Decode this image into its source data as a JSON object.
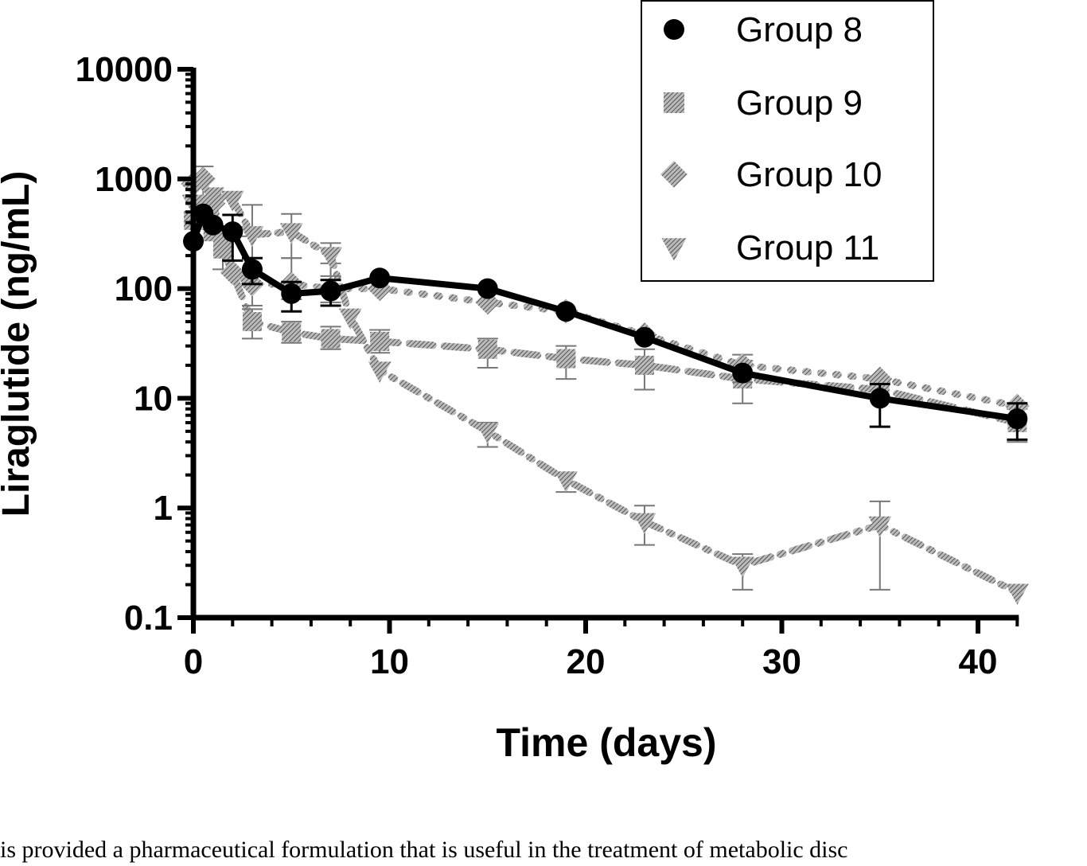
{
  "chart_data": {
    "type": "line",
    "xlabel": "Time (days)",
    "ylabel": "Liraglutide (ng/mL)",
    "xlim": [
      0,
      42
    ],
    "ylim": [
      0.1,
      10000
    ],
    "y_scale": "log",
    "x_ticks": [
      0,
      10,
      20,
      30,
      40
    ],
    "x_tick_labels": [
      "0",
      "10",
      "20",
      "30",
      "40"
    ],
    "y_ticks": [
      0.1,
      1,
      10,
      100,
      1000,
      10000
    ],
    "y_tick_labels": [
      "0.1",
      "1",
      "10",
      "100",
      "1000",
      "10000"
    ],
    "legend_position": "top-right",
    "series": [
      {
        "name": "Group 8",
        "marker": "circle",
        "line_style": "solid",
        "color": "#000000",
        "x": [
          0,
          0.5,
          1,
          2,
          3,
          5,
          7,
          9.5,
          15,
          19,
          23,
          28,
          35,
          42
        ],
        "y": [
          270,
          480,
          380,
          330,
          150,
          90,
          95,
          125,
          100,
          62,
          36,
          17,
          10,
          6.5
        ],
        "err_hi": [
          null,
          null,
          null,
          470,
          190,
          115,
          120,
          null,
          null,
          null,
          null,
          null,
          13.5,
          9
        ],
        "err_lo": [
          null,
          null,
          null,
          180,
          110,
          62,
          70,
          null,
          null,
          null,
          null,
          null,
          5.5,
          4.2
        ]
      },
      {
        "name": "Group 9",
        "marker": "square",
        "line_style": "dashed",
        "color": "#888888",
        "x": [
          0,
          1,
          1.5,
          3,
          5,
          7,
          9.5,
          15,
          19,
          23,
          28,
          35,
          42
        ],
        "y": [
          420,
          330,
          230,
          50,
          40,
          35,
          33,
          28,
          23,
          20,
          15,
          12,
          6
        ],
        "err_hi": [
          null,
          null,
          350,
          65,
          50,
          45,
          42,
          35,
          30,
          28,
          22,
          14,
          8
        ],
        "err_lo": [
          null,
          null,
          150,
          35,
          32,
          28,
          26,
          19,
          15,
          12,
          9,
          10,
          4
        ]
      },
      {
        "name": "Group 10",
        "marker": "diamond",
        "line_style": "dotted",
        "color": "#888888",
        "x": [
          0,
          0.5,
          1,
          2,
          3,
          5,
          7,
          9.5,
          15,
          19,
          23,
          28,
          35,
          42
        ],
        "y": [
          900,
          1000,
          600,
          140,
          110,
          110,
          100,
          100,
          75,
          62,
          38,
          20,
          15,
          8.5
        ],
        "err_hi": [
          null,
          1300,
          null,
          null,
          300,
          190,
          170,
          null,
          null,
          null,
          null,
          25,
          null,
          null
        ],
        "err_lo": [
          null,
          600,
          null,
          null,
          70,
          80,
          75,
          null,
          null,
          null,
          null,
          14,
          null,
          null
        ]
      },
      {
        "name": "Group 11",
        "marker": "triangle-down",
        "line_style": "dash-dot",
        "color": "#888888",
        "x": [
          0,
          1,
          2,
          3,
          5,
          7,
          8,
          9.5,
          15,
          19,
          23,
          28,
          35,
          42
        ],
        "y": [
          600,
          700,
          650,
          310,
          330,
          200,
          55,
          18,
          5,
          1.8,
          0.75,
          0.3,
          0.7,
          0.17
        ],
        "err_hi": [
          null,
          null,
          null,
          580,
          480,
          260,
          null,
          null,
          6,
          2.1,
          1.05,
          0.38,
          1.15,
          null
        ],
        "err_lo": [
          null,
          null,
          null,
          150,
          190,
          130,
          null,
          null,
          3.6,
          1.4,
          0.46,
          0.18,
          0.18,
          null
        ]
      }
    ]
  },
  "footer": {
    "text": "is provided a pharmaceutical formulation that is useful in the treatment of metabolic disc"
  }
}
